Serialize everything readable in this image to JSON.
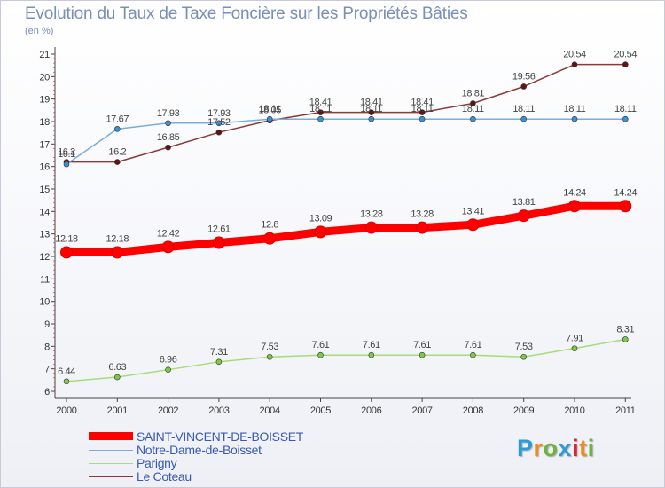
{
  "title": "Evolution du Taux de Taxe Foncière sur les Propriétés Bâties",
  "unit": "(en %)",
  "brand": {
    "letters": [
      "P",
      "r",
      "o",
      "x",
      "i",
      "t",
      "i"
    ],
    "colors": [
      "#2e9bd6",
      "#f08a1c",
      "#6cb33f",
      "#2e9bd6",
      "#d8262f",
      "#f08a1c",
      "#6cb33f"
    ]
  },
  "chart_data": {
    "type": "line",
    "x": [
      "2000",
      "2001",
      "2002",
      "2003",
      "2004",
      "2005",
      "2006",
      "2007",
      "2008",
      "2009",
      "2010",
      "2011"
    ],
    "ylim": [
      6,
      21
    ],
    "yticks": [
      "6",
      "7",
      "8",
      "9",
      "10",
      "11",
      "12",
      "13",
      "14",
      "15",
      "16",
      "17",
      "18",
      "19",
      "20",
      "21"
    ],
    "grid": false,
    "legend_position": "bottom-left",
    "series": [
      {
        "name": "SAINT-VINCENT-DE-BOISSET",
        "color": "#ff0000",
        "marker_color": "#ff0000",
        "values": [
          12.18,
          12.18,
          12.42,
          12.61,
          12.8,
          13.09,
          13.28,
          13.28,
          13.41,
          13.81,
          14.24,
          14.24
        ],
        "labels": [
          "12.18",
          "12.18",
          "12.42",
          "12.61",
          "12.8",
          "13.09",
          "13.28",
          "13.28",
          "13.41",
          "13.81",
          "14.24",
          "14.24"
        ]
      },
      {
        "name": "Notre-Dame-de-Boisset",
        "color": "#7aaed8",
        "marker_color": "#3e8fd0",
        "values": [
          16.1,
          17.67,
          17.93,
          17.93,
          18.11,
          18.11,
          18.11,
          18.11,
          18.11,
          18.11,
          18.11,
          18.11
        ],
        "labels": [
          "16.1",
          "17.67",
          "17.93",
          "17.93",
          "18.11",
          "18.11",
          "18.11",
          "18.11",
          "18.11",
          "18.11",
          "18.11",
          "18.11"
        ]
      },
      {
        "name": "Parigny",
        "color": "#a6dc7a",
        "marker_color": "#7cc94a",
        "values": [
          6.44,
          6.63,
          6.96,
          7.31,
          7.53,
          7.61,
          7.61,
          7.61,
          7.61,
          7.53,
          7.91,
          8.31
        ],
        "labels": [
          "6.44",
          "6.63",
          "6.96",
          "7.31",
          "7.53",
          "7.61",
          "7.61",
          "7.61",
          "7.61",
          "7.53",
          "7.91",
          "8.31"
        ]
      },
      {
        "name": "Le Coteau",
        "color": "#8b3a3a",
        "marker_color": "#5e1515",
        "values": [
          16.2,
          16.2,
          16.85,
          17.52,
          18.05,
          18.41,
          18.41,
          18.41,
          18.81,
          19.56,
          20.54,
          20.54
        ],
        "labels": [
          "16.2",
          "16.2",
          "16.85",
          "17.52",
          "18.05",
          "18.41",
          "18.41",
          "18.41",
          "18.81",
          "19.56",
          "20.54",
          "20.54"
        ]
      }
    ]
  }
}
